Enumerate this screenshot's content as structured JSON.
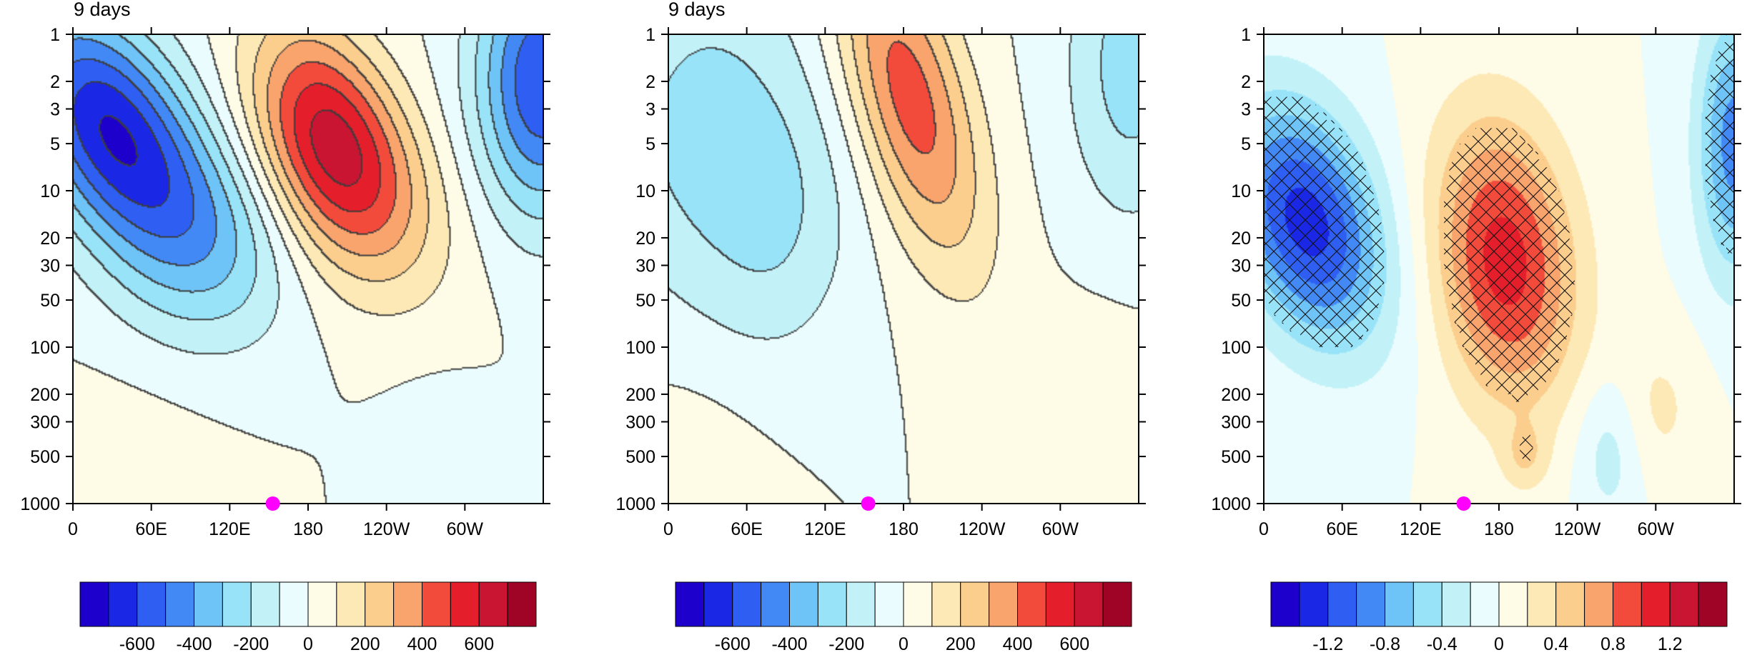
{
  "chart_data": [
    {
      "type": "heatmap",
      "title": "9 days",
      "x_ticks": [
        "0",
        "60E",
        "120E",
        "180",
        "120W",
        "60W"
      ],
      "x_tick_values_deg": [
        0,
        60,
        120,
        180,
        240,
        300
      ],
      "x_range_deg": [
        0,
        360
      ],
      "y_ticks": [
        "1",
        "2",
        "3",
        "5",
        "10",
        "20",
        "30",
        "50",
        "100",
        "200",
        "300",
        "500",
        "1000"
      ],
      "y_tick_values": [
        1,
        2,
        3,
        5,
        10,
        20,
        30,
        50,
        100,
        200,
        300,
        500,
        1000
      ],
      "y_range": [
        1,
        1000
      ],
      "y_scale": "log",
      "y_reversed": true,
      "marker": {
        "lon_deg": 153,
        "level": 1000,
        "color": "#ff00ff"
      },
      "colorbar": {
        "levels": [
          -700,
          -600,
          -500,
          -400,
          -300,
          -200,
          -100,
          0,
          100,
          200,
          300,
          400,
          500,
          600,
          700
        ],
        "labels": [
          "-600",
          "-400",
          "-200",
          "0",
          "200",
          "400",
          "600"
        ],
        "label_values": [
          -600,
          -400,
          -200,
          0,
          200,
          400,
          600
        ]
      },
      "field": {
        "negative_centers": [
          {
            "lon_deg": 25,
            "level": 4,
            "value": -650
          },
          {
            "lon_deg": 360,
            "level": 1,
            "value": -550
          }
        ],
        "positive_centers": [
          {
            "lon_deg": 195,
            "level": 4,
            "value": 680
          }
        ],
        "weak_centers": [
          {
            "lon_deg": 290,
            "level": 400,
            "value": -40
          }
        ]
      },
      "contour_lines": true,
      "hatching": false
    },
    {
      "type": "heatmap",
      "title": "9 days",
      "x_ticks": [
        "0",
        "60E",
        "120E",
        "180",
        "120W",
        "60W"
      ],
      "x_tick_values_deg": [
        0,
        60,
        120,
        180,
        240,
        300
      ],
      "x_range_deg": [
        0,
        360
      ],
      "y_ticks": [
        "1",
        "2",
        "3",
        "5",
        "10",
        "20",
        "30",
        "50",
        "100",
        "200",
        "300",
        "500",
        "1000"
      ],
      "y_tick_values": [
        1,
        2,
        3,
        5,
        10,
        20,
        30,
        50,
        100,
        200,
        300,
        500,
        1000
      ],
      "y_range": [
        1,
        1000
      ],
      "y_scale": "log",
      "y_reversed": true,
      "marker": {
        "lon_deg": 153,
        "level": 1000,
        "color": "#ff00ff"
      },
      "colorbar": {
        "levels": [
          -700,
          -600,
          -500,
          -400,
          -300,
          -200,
          -100,
          0,
          100,
          200,
          300,
          400,
          500,
          600,
          700
        ],
        "labels": [
          "-600",
          "-400",
          "-200",
          "0",
          "200",
          "400",
          "600"
        ],
        "label_values": [
          -600,
          -400,
          -200,
          0,
          200,
          400,
          600
        ]
      },
      "field": {
        "negative_centers": [
          {
            "lon_deg": 30,
            "level": 3,
            "value": -230
          },
          {
            "lon_deg": 350,
            "level": 1,
            "value": -240
          }
        ],
        "positive_centers": [
          {
            "lon_deg": 180,
            "level": 2,
            "value": 420
          }
        ],
        "weak_centers": [
          {
            "lon_deg": 330,
            "level": 100,
            "value": 40
          }
        ]
      },
      "contour_lines": true,
      "hatching": false
    },
    {
      "type": "heatmap",
      "title": "",
      "x_ticks": [
        "0",
        "60E",
        "120E",
        "180",
        "120W",
        "60W"
      ],
      "x_tick_values_deg": [
        0,
        60,
        120,
        180,
        240,
        300
      ],
      "x_range_deg": [
        0,
        360
      ],
      "y_ticks": [
        "1",
        "2",
        "3",
        "5",
        "10",
        "20",
        "30",
        "50",
        "100",
        "200",
        "300",
        "500",
        "1000"
      ],
      "y_tick_values": [
        1,
        2,
        3,
        5,
        10,
        20,
        30,
        50,
        100,
        200,
        300,
        500,
        1000
      ],
      "y_range": [
        1,
        1000
      ],
      "y_scale": "log",
      "y_reversed": true,
      "marker": {
        "lon_deg": 153,
        "level": 1000,
        "color": "#ff00ff"
      },
      "colorbar": {
        "levels": [
          -1.4,
          -1.2,
          -1.0,
          -0.8,
          -0.6,
          -0.4,
          -0.2,
          0,
          0.2,
          0.4,
          0.6,
          0.8,
          1.0,
          1.2,
          1.4
        ],
        "labels": [
          "-1.2",
          "-0.8",
          "-0.4",
          "0",
          "0.4",
          "0.8",
          "1.2"
        ],
        "label_values": [
          -1.2,
          -0.8,
          -0.4,
          0,
          0.4,
          0.8,
          1.2
        ]
      },
      "field": {
        "negative_centers": [
          {
            "lon_deg": 30,
            "level": 14,
            "value": -1.3
          },
          {
            "lon_deg": 355,
            "level": 8,
            "value": -0.9
          }
        ],
        "positive_centers": [
          {
            "lon_deg": 200,
            "level": 40,
            "value": 1.05
          }
        ],
        "weak_centers": [
          {
            "lon_deg": 270,
            "level": 500,
            "value": -0.3
          }
        ]
      },
      "contour_lines": false,
      "hatching": true
    }
  ],
  "colors": {
    "palette": [
      "#1e00cc",
      "#1a28e6",
      "#2e5ff2",
      "#4289f5",
      "#6fc4f7",
      "#98e3f8",
      "#c2f2f8",
      "#eafcfd",
      "#fefbe6",
      "#fde9b5",
      "#fbce8d",
      "#f8a46c",
      "#f24b3c",
      "#e41e2a",
      "#c91532",
      "#9f0325"
    ],
    "marker": "#ff00ff"
  }
}
